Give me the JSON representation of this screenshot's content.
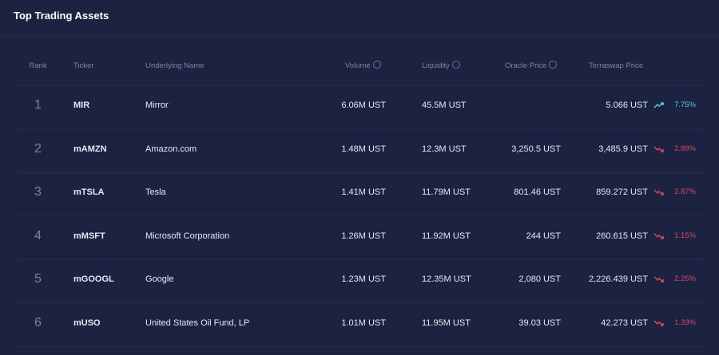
{
  "title": "Top Trading Assets",
  "columns": {
    "rank": "Rank",
    "ticker": "Ticker",
    "name": "Underlying Name",
    "volume": "Volume",
    "liquidity": "Liquidity",
    "oracle": "Oracle Price",
    "terraswap": "Terraswap Price"
  },
  "colors": {
    "up": "#5ec7e0",
    "down": "#e0435f"
  },
  "rows": [
    {
      "rank": "1",
      "ticker": "MIR",
      "name": "Mirror",
      "volume": "6.06M UST",
      "liquidity": "45.5M UST",
      "oracle": "",
      "terraswap": "5.066 UST",
      "trend": "up",
      "change": "7.75%"
    },
    {
      "rank": "2",
      "ticker": "mAMZN",
      "name": "Amazon.com",
      "volume": "1.48M UST",
      "liquidity": "12.3M UST",
      "oracle": "3,250.5 UST",
      "terraswap": "3,485.9 UST",
      "trend": "down",
      "change": "2.89%"
    },
    {
      "rank": "3",
      "ticker": "mTSLA",
      "name": "Tesla",
      "volume": "1.41M UST",
      "liquidity": "11.79M UST",
      "oracle": "801.46 UST",
      "terraswap": "859.272 UST",
      "trend": "down",
      "change": "2.87%"
    },
    {
      "rank": "4",
      "ticker": "mMSFT",
      "name": "Microsoft Corporation",
      "volume": "1.26M UST",
      "liquidity": "11.92M UST",
      "oracle": "244 UST",
      "terraswap": "260.615 UST",
      "trend": "down",
      "change": "1.15%"
    },
    {
      "rank": "5",
      "ticker": "mGOOGL",
      "name": "Google",
      "volume": "1.23M UST",
      "liquidity": "12.35M UST",
      "oracle": "2,080 UST",
      "terraswap": "2,226.439 UST",
      "trend": "down",
      "change": "2.25%"
    },
    {
      "rank": "6",
      "ticker": "mUSO",
      "name": "United States Oil Fund, LP",
      "volume": "1.01M UST",
      "liquidity": "11.95M UST",
      "oracle": "39.03 UST",
      "terraswap": "42.273 UST",
      "trend": "down",
      "change": "1.33%"
    }
  ]
}
